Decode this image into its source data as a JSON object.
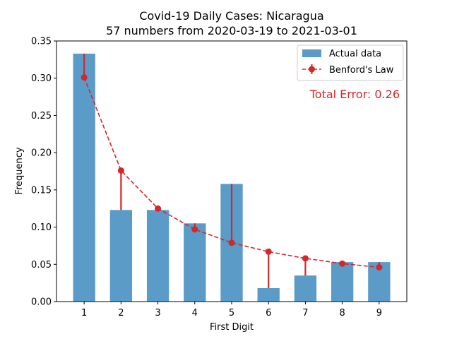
{
  "chart_data": {
    "type": "bar",
    "title": "Covid-19 Daily Cases: Nicaragua",
    "subtitle": "57 numbers from 2020-03-19 to 2021-03-01",
    "xlabel": "First Digit",
    "ylabel": "Frequency",
    "categories": [
      "1",
      "2",
      "3",
      "4",
      "5",
      "6",
      "7",
      "8",
      "9"
    ],
    "xlim": [
      0.25,
      9.75
    ],
    "ylim": [
      0,
      0.35
    ],
    "yticks": [
      "0.00",
      "0.05",
      "0.10",
      "0.15",
      "0.20",
      "0.25",
      "0.30",
      "0.35"
    ],
    "grid": false,
    "legend_position": "top-right",
    "series": [
      {
        "name": "Actual data",
        "type": "bar",
        "color": "#5b9bc8",
        "values": [
          0.333,
          0.123,
          0.123,
          0.105,
          0.158,
          0.018,
          0.035,
          0.053,
          0.053
        ]
      },
      {
        "name": "Benford's Law",
        "type": "line-with-error",
        "color": "#d62728",
        "values": [
          0.301,
          0.176,
          0.125,
          0.097,
          0.079,
          0.067,
          0.058,
          0.051,
          0.046
        ]
      }
    ],
    "annotation": "Total Error: 0.26"
  }
}
